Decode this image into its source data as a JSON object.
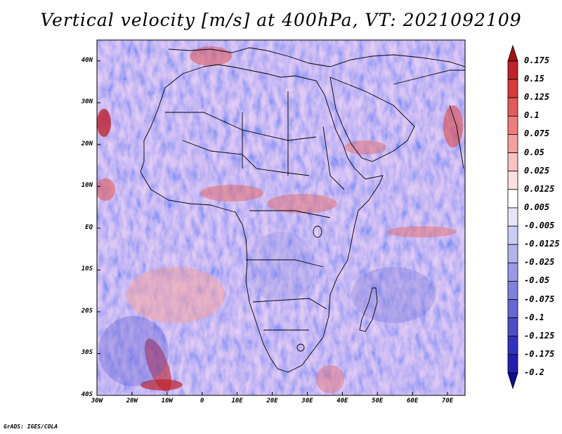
{
  "title": "Vertical velocity [m/s] at 400hPa, VT: 2021092109",
  "map": {
    "lon_range": [
      -30,
      75
    ],
    "lat_range": [
      -40,
      45
    ],
    "lat_ticks": [
      {
        "value": 40,
        "label": "40N"
      },
      {
        "value": 30,
        "label": "30N"
      },
      {
        "value": 20,
        "label": "20N"
      },
      {
        "value": 10,
        "label": "10N"
      },
      {
        "value": 0,
        "label": "EQ"
      },
      {
        "value": -10,
        "label": "10S"
      },
      {
        "value": -20,
        "label": "20S"
      },
      {
        "value": -30,
        "label": "30S"
      },
      {
        "value": -40,
        "label": "40S"
      }
    ],
    "lon_ticks": [
      {
        "value": -30,
        "label": "30W"
      },
      {
        "value": -20,
        "label": "20W"
      },
      {
        "value": -10,
        "label": "10W"
      },
      {
        "value": 0,
        "label": "0"
      },
      {
        "value": 10,
        "label": "10E"
      },
      {
        "value": 20,
        "label": "20E"
      },
      {
        "value": 30,
        "label": "30E"
      },
      {
        "value": 40,
        "label": "40E"
      },
      {
        "value": 50,
        "label": "50E"
      },
      {
        "value": 60,
        "label": "60E"
      },
      {
        "value": 70,
        "label": "70E"
      }
    ]
  },
  "colorbar": {
    "labels": [
      "0.175",
      "0.15",
      "0.125",
      "0.1",
      "0.075",
      "0.05",
      "0.025",
      "0.0125",
      "0.005",
      "-0.005",
      "-0.0125",
      "-0.025",
      "-0.05",
      "-0.075",
      "-0.1",
      "-0.125",
      "-0.175",
      "-0.2"
    ],
    "colors": [
      "#a50f15",
      "#c0222a",
      "#d93a3a",
      "#e55a5a",
      "#ef7d7d",
      "#f5a0a0",
      "#f9c2c2",
      "#fde0e0",
      "#ffffff",
      "#e6e6fa",
      "#ccccf5",
      "#b3b3ee",
      "#9999e6",
      "#8080dd",
      "#6666d4",
      "#4d4dca",
      "#3333bf",
      "#2020b0",
      "#0d0d9a"
    ]
  },
  "credit": "GrADS: IGES/COLA"
}
